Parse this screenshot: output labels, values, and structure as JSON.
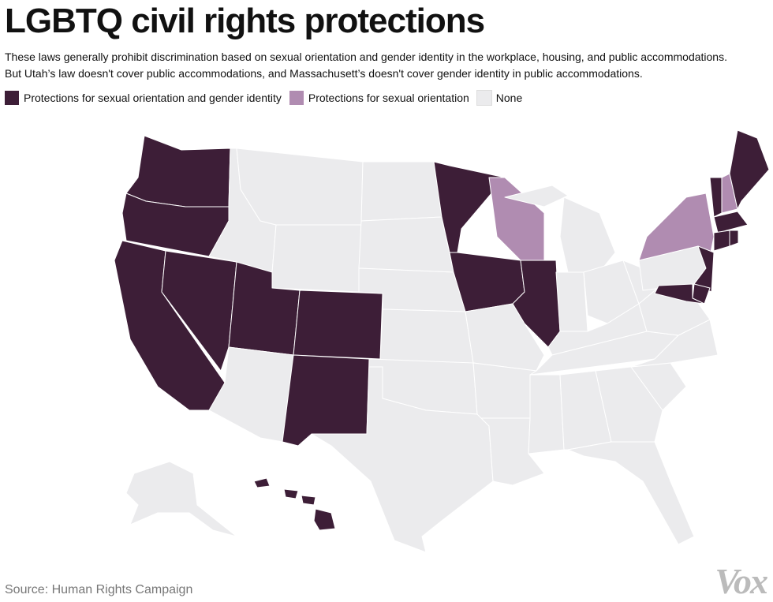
{
  "header": {
    "title": "LGBTQ civil rights protections",
    "subtitle_lines": [
      "These laws generally prohibit discrimination based on sexual orientation and gender identity in the workplace, housing, and public accommodations.",
      "But Utah’s law doesn't cover public accommodations, and Massachusett’s doesn't cover gender identity in public accommodations."
    ]
  },
  "legend": [
    {
      "label": "Protections for sexual orientation and gender identity",
      "color": "#3d1e37"
    },
    {
      "label": "Protections for sexual orientation",
      "color": "#b08cb1"
    },
    {
      "label": "None",
      "color": "#ebebed"
    }
  ],
  "footer": {
    "source": "Source: Human Rights Campaign",
    "logo": "Vox"
  }
}
